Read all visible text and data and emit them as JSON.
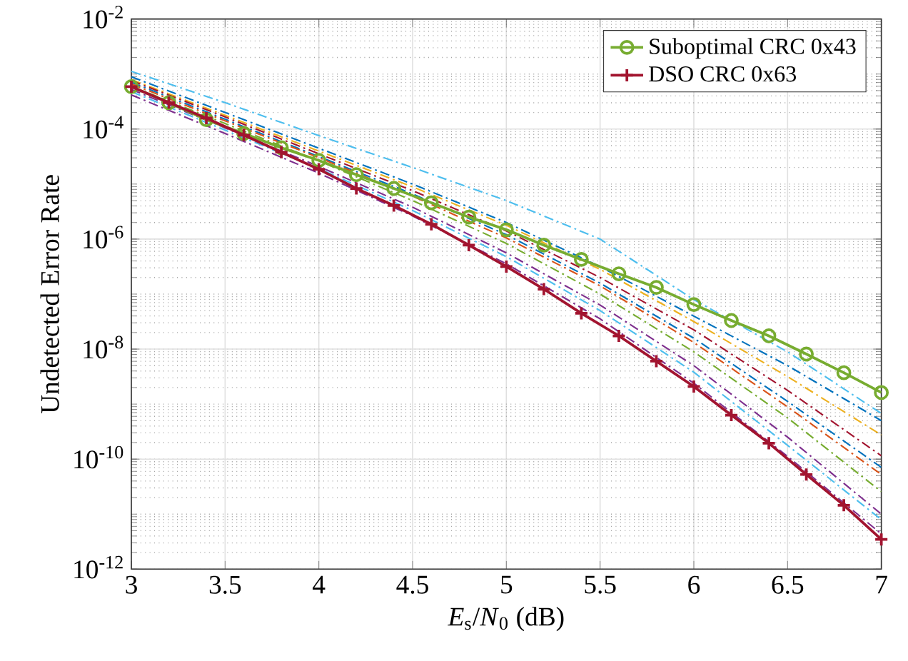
{
  "chart_data": {
    "type": "line",
    "xlabel": "*E*$_{s}$/*N*$_{0}$ (dB)",
    "ylabel": "Undetected Error Rate",
    "x": [
      3,
      3.2,
      3.4,
      3.6,
      3.8,
      4,
      4.2,
      4.4,
      4.6,
      4.8,
      5,
      5.2,
      5.4,
      5.6,
      5.8,
      6,
      6.2,
      6.4,
      6.6,
      6.8,
      7
    ],
    "log": "y",
    "grid": true,
    "legend": "top right",
    "xlim": [
      3,
      7
    ],
    "ylim": [
      1e-12,
      0.01
    ],
    "xticks": [
      3,
      3.5,
      4,
      4.5,
      5,
      5.5,
      6,
      6.5,
      7
    ],
    "yticks": [
      {
        "value": 1e-12,
        "label": "10$^{-12}$"
      },
      {
        "value": 1e-10,
        "label": "10$^{-10}$"
      },
      {
        "value": 1e-08,
        "label": "10$^{-8}$"
      },
      {
        "value": 1e-06,
        "label": "10$^{-6}$"
      },
      {
        "value": 0.0001,
        "label": "10$^{-4}$"
      },
      {
        "value": 0.01,
        "label": "10$^{-2}$"
      }
    ],
    "series": [
      {
        "color": "#4dbeee",
        "line_style": "dashdot",
        "marker": "none",
        "x": [
          3,
          3.5,
          4,
          4.5,
          5,
          5.5,
          6,
          6.5,
          7
        ],
        "values": [
          0.00112,
          0.000302,
          7.59e-05,
          2e-05,
          5.01e-06,
          1e-06,
          7.94e-08,
          8.91e-09,
          6.76e-10
        ]
      },
      {
        "color": "#0072bd",
        "line_style": "dashdot",
        "marker": "none",
        "x": [
          3,
          3.5,
          4,
          4.5,
          5,
          5.5,
          6,
          6.5,
          7
        ],
        "values": [
          0.000891,
          0.0002,
          4.47e-05,
          1e-05,
          2e-06,
          3.16e-07,
          3.98e-08,
          5.01e-09,
          5.01e-10
        ]
      },
      {
        "color": "#edb120",
        "line_style": "dashdot",
        "marker": "none",
        "x": [
          3,
          3.5,
          4,
          4.5,
          5,
          5.5,
          6,
          6.5,
          7
        ],
        "values": [
          0.000794,
          0.000178,
          3.98e-05,
          8.91e-06,
          1.78e-06,
          2.82e-07,
          3.16e-08,
          3.16e-09,
          2.75e-10
        ]
      },
      {
        "color": "#a2142f",
        "line_style": "dashdot",
        "marker": "none",
        "x": [
          3,
          3.5,
          4,
          4.5,
          5,
          5.5,
          6,
          6.5,
          7
        ],
        "values": [
          0.000759,
          0.000166,
          3.55e-05,
          7.59e-06,
          1.41e-06,
          2e-07,
          2.24e-08,
          1.78e-09,
          1.15e-10
        ]
      },
      {
        "color": "#0072bd",
        "line_style": "dashdot",
        "marker": "none",
        "x": [
          3,
          3.5,
          4,
          4.5,
          5,
          5.5,
          6,
          6.5,
          7
        ],
        "values": [
          0.000708,
          0.000151,
          3.16e-05,
          6.61e-06,
          1.2e-06,
          1.58e-07,
          1.58e-08,
          1.12e-09,
          7.08e-11
        ]
      },
      {
        "color": "#d95319",
        "line_style": "dashdot",
        "marker": "none",
        "x": [
          3,
          3.5,
          4,
          4.5,
          5,
          5.5,
          6,
          6.5,
          7
        ],
        "values": [
          0.000661,
          0.000141,
          3.02e-05,
          6.03e-06,
          1.05e-06,
          1.41e-07,
          1.32e-08,
          8.91e-10,
          5.25e-11
        ]
      },
      {
        "color": "#77ac30",
        "line_style": "dashdot",
        "marker": "none",
        "x": [
          3,
          3.5,
          4,
          4.5,
          5,
          5.5,
          6,
          6.5,
          7
        ],
        "values": [
          0.000603,
          0.000126,
          2.63e-05,
          5.01e-06,
          8.32e-07,
          1e-07,
          8.91e-09,
          5.62e-10,
          2.57e-11
        ]
      },
      {
        "color": "#7e2f8e",
        "line_style": "dashdot",
        "marker": "none",
        "x": [
          3,
          3.5,
          4,
          4.5,
          5,
          5.5,
          6,
          6.5,
          7
        ],
        "values": [
          0.000525,
          0.000105,
          2.09e-05,
          3.8e-06,
          5.62e-07,
          6.31e-08,
          5.01e-09,
          2.51e-10,
          1e-11
        ]
      },
      {
        "color": "#4dbeee",
        "line_style": "dashdot",
        "marker": "none",
        "x": [
          3,
          3.5,
          4,
          4.5,
          5,
          5.5,
          6,
          6.5,
          7
        ],
        "values": [
          0.000479,
          9.55e-05,
          1.91e-05,
          3.31e-06,
          4.79e-07,
          5.01e-08,
          3.8e-09,
          1.78e-10,
          7.94e-12
        ]
      },
      {
        "color": "#7e2f8e",
        "line_style": "dashdot",
        "marker": "none",
        "x": [
          3,
          3.5,
          4,
          4.5,
          5,
          5.5,
          6,
          6.5,
          7
        ],
        "values": [
          0.000417,
          8.32e-05,
          1.58e-05,
          2.63e-06,
          3.55e-07,
          3.55e-08,
          2.4e-09,
          1.12e-10,
          4.37e-12
        ]
      },
      {
        "name": "Suboptimal CRC 0x43",
        "color": "#77ac30",
        "line_style": "solid",
        "marker": "circle",
        "values": [
          0.000589,
          0.000302,
          0.000148,
          8.32e-05,
          4.57e-05,
          2.69e-05,
          1.48e-05,
          8.32e-06,
          4.57e-06,
          2.51e-06,
          1.48e-06,
          7.76e-07,
          4.27e-07,
          2.34e-07,
          1.32e-07,
          6.46e-08,
          3.31e-08,
          1.74e-08,
          8.13e-09,
          3.72e-09,
          1.62e-09
        ]
      },
      {
        "name": "DSO CRC 0x63",
        "color": "#a2142f",
        "line_style": "solid",
        "marker": "cross",
        "values": [
          0.000589,
          0.000302,
          0.000158,
          7.76e-05,
          3.8e-05,
          1.86e-05,
          8.32e-06,
          4.07e-06,
          1.86e-06,
          7.76e-07,
          3.16e-07,
          1.23e-07,
          4.47e-08,
          1.74e-08,
          6.03e-09,
          2.09e-09,
          6.31e-10,
          1.95e-10,
          5.25e-11,
          1.45e-11,
          3.47e-12
        ]
      }
    ]
  }
}
